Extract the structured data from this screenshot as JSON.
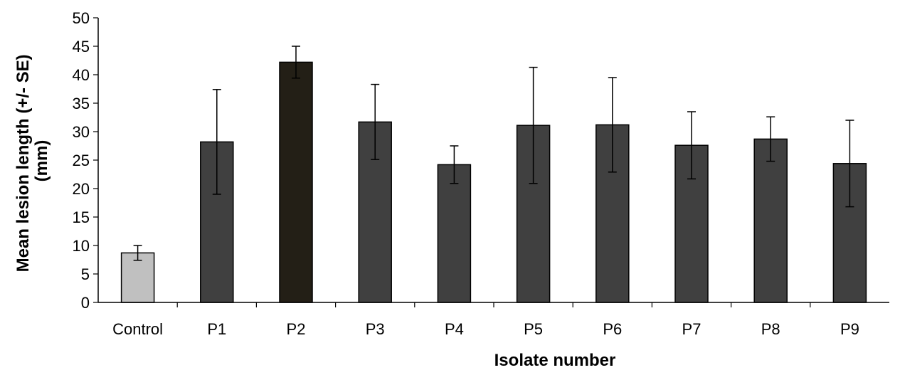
{
  "chart_data": {
    "type": "bar",
    "xlabel": "Isolate number",
    "ylabel_lines": [
      "Mean lesion length (+/- SE)",
      "(mm)"
    ],
    "ylim": [
      0,
      50
    ],
    "ytick_step": 5,
    "categories": [
      "Control",
      "P1",
      "P2",
      "P3",
      "P4",
      "P5",
      "P6",
      "P7",
      "P8",
      "P9"
    ],
    "values": [
      8.7,
      28.2,
      42.2,
      31.7,
      24.2,
      31.1,
      31.2,
      27.6,
      28.7,
      24.4
    ],
    "errors": [
      1.3,
      9.2,
      2.8,
      6.6,
      3.3,
      10.2,
      8.3,
      5.9,
      3.9,
      7.6
    ],
    "colors": {
      "Control": "#c0c0c0",
      "P2": "#231f16",
      "default": "#404040"
    },
    "grid": false,
    "legend": "none"
  }
}
